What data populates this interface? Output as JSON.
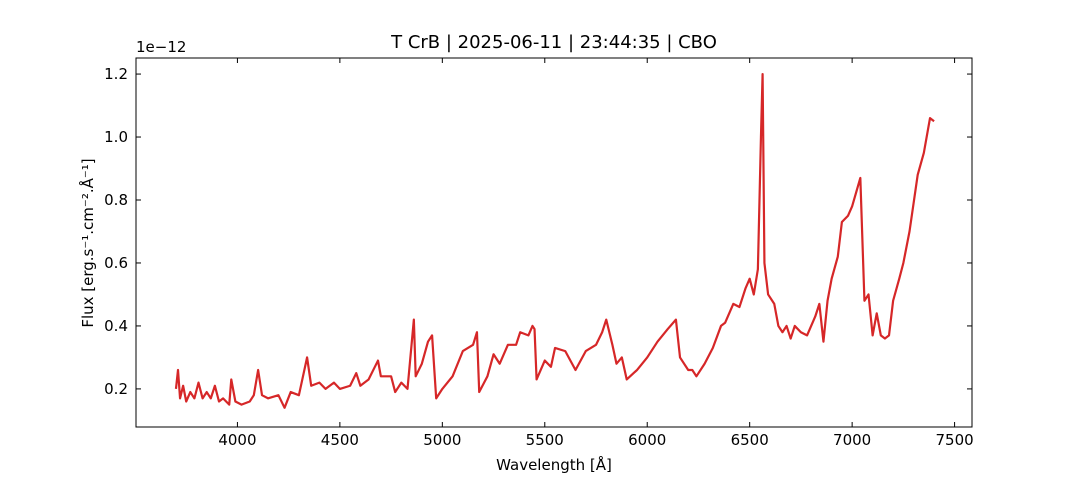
{
  "chart_data": {
    "type": "line",
    "title": "T CrB | 2025-06-11 | 23:44:35 | CBO",
    "xlabel": "Wavelength [Å]",
    "ylabel": "Flux [erg.s⁻¹.cm⁻².Å⁻¹]",
    "y_offset_label": "1e−12",
    "color": "#d62728",
    "xlim": [
      3505,
      7585
    ],
    "ylim": [
      0.079,
      1.251
    ],
    "xticks": [
      4000,
      4500,
      5000,
      5500,
      6000,
      6500,
      7000,
      7500
    ],
    "yticks": [
      0.2,
      0.4,
      0.6,
      0.8,
      {
        "value": 1.0,
        "label": "1.0"
      },
      1.2
    ],
    "x": [
      3700,
      3710,
      3720,
      3735,
      3750,
      3770,
      3790,
      3810,
      3830,
      3850,
      3870,
      3890,
      3910,
      3930,
      3960,
      3970,
      3990,
      4020,
      4060,
      4080,
      4101,
      4120,
      4150,
      4200,
      4230,
      4260,
      4300,
      4340,
      4360,
      4400,
      4430,
      4471,
      4500,
      4550,
      4580,
      4600,
      4640,
      4686,
      4700,
      4750,
      4770,
      4800,
      4830,
      4861,
      4870,
      4900,
      4930,
      4950,
      4970,
      5000,
      5050,
      5100,
      5150,
      5169,
      5180,
      5220,
      5250,
      5280,
      5320,
      5360,
      5380,
      5420,
      5440,
      5450,
      5460,
      5500,
      5530,
      5550,
      5600,
      5650,
      5700,
      5750,
      5780,
      5800,
      5830,
      5850,
      5876,
      5900,
      5950,
      6000,
      6050,
      6100,
      6140,
      6160,
      6200,
      6220,
      6240,
      6280,
      6320,
      6360,
      6380,
      6420,
      6450,
      6480,
      6500,
      6520,
      6540,
      6555,
      6563,
      6572,
      6590,
      6620,
      6640,
      6660,
      6680,
      6700,
      6720,
      6750,
      6780,
      6820,
      6840,
      6860,
      6880,
      6900,
      6930,
      6950,
      6980,
      7000,
      7040,
      7060,
      7080,
      7100,
      7120,
      7140,
      7160,
      7180,
      7200,
      7230,
      7250,
      7280,
      7320,
      7350,
      7380,
      7400
    ],
    "values": [
      0.2,
      0.26,
      0.17,
      0.21,
      0.16,
      0.19,
      0.17,
      0.22,
      0.17,
      0.19,
      0.17,
      0.21,
      0.16,
      0.17,
      0.15,
      0.23,
      0.16,
      0.15,
      0.16,
      0.18,
      0.26,
      0.18,
      0.17,
      0.18,
      0.14,
      0.19,
      0.18,
      0.3,
      0.21,
      0.22,
      0.2,
      0.22,
      0.2,
      0.21,
      0.25,
      0.21,
      0.23,
      0.29,
      0.24,
      0.24,
      0.19,
      0.22,
      0.2,
      0.42,
      0.24,
      0.28,
      0.35,
      0.37,
      0.17,
      0.2,
      0.24,
      0.32,
      0.34,
      0.38,
      0.19,
      0.24,
      0.31,
      0.28,
      0.34,
      0.34,
      0.38,
      0.37,
      0.4,
      0.39,
      0.23,
      0.29,
      0.27,
      0.33,
      0.32,
      0.26,
      0.32,
      0.34,
      0.38,
      0.42,
      0.34,
      0.28,
      0.3,
      0.23,
      0.26,
      0.3,
      0.35,
      0.39,
      0.42,
      0.3,
      0.26,
      0.26,
      0.24,
      0.28,
      0.33,
      0.4,
      0.41,
      0.47,
      0.46,
      0.52,
      0.55,
      0.5,
      0.58,
      1.0,
      1.2,
      0.6,
      0.5,
      0.47,
      0.4,
      0.38,
      0.4,
      0.36,
      0.4,
      0.38,
      0.37,
      0.43,
      0.47,
      0.35,
      0.48,
      0.55,
      0.62,
      0.73,
      0.75,
      0.78,
      0.87,
      0.48,
      0.5,
      0.37,
      0.44,
      0.37,
      0.36,
      0.37,
      0.48,
      0.55,
      0.6,
      0.7,
      0.88,
      0.95,
      1.06,
      1.05
    ]
  }
}
